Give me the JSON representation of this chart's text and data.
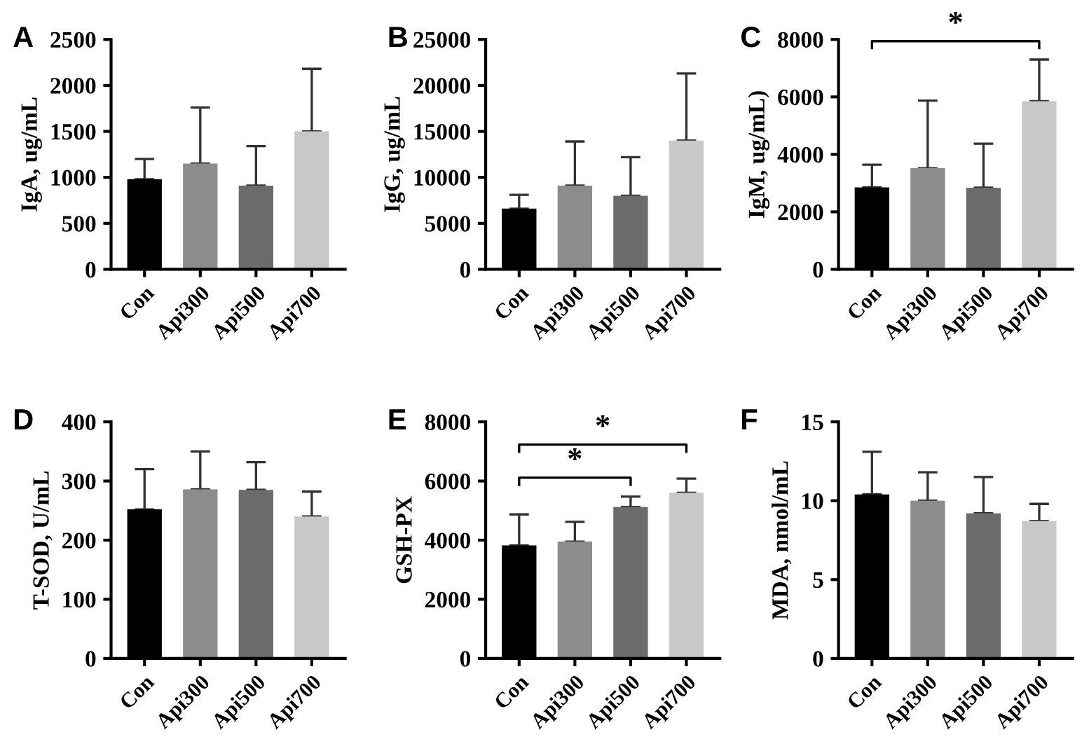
{
  "chart_data": [
    {
      "type": "bar",
      "title": "A",
      "ylabel": "IgA, ug/mL",
      "categories": [
        "Con",
        "Api300",
        "Api500",
        "Api700"
      ],
      "values": [
        980,
        1150,
        910,
        1500
      ],
      "colors": [
        "#000000",
        "#8c8c8c",
        "#6b6b6b",
        "#c8c8c8"
      ],
      "errors": [
        [
          980,
          1200
        ],
        [
          1150,
          1760
        ],
        [
          910,
          1340
        ],
        [
          1500,
          2180
        ]
      ],
      "ylim": [
        0,
        2500
      ],
      "yticks": [
        0,
        500,
        1000,
        1500,
        2000,
        2500
      ]
    },
    {
      "type": "bar",
      "title": "B",
      "ylabel": "IgG, ug/mL",
      "categories": [
        "Con",
        "Api300",
        "Api500",
        "Api700"
      ],
      "values": [
        6600,
        9100,
        8000,
        14000
      ],
      "colors": [
        "#000000",
        "#8c8c8c",
        "#6b6b6b",
        "#c8c8c8"
      ],
      "errors": [
        [
          6600,
          8100
        ],
        [
          9100,
          13900
        ],
        [
          8000,
          12200
        ],
        [
          14000,
          21300
        ]
      ],
      "ylim": [
        0,
        25000
      ],
      "yticks": [
        0,
        5000,
        10000,
        15000,
        20000,
        25000
      ]
    },
    {
      "type": "bar",
      "title": "C",
      "ylabel": "IgM, ug/mL)",
      "categories": [
        "Con",
        "Api300",
        "Api500",
        "Api700"
      ],
      "values": [
        2850,
        3520,
        2840,
        5850
      ],
      "colors": [
        "#000000",
        "#8c8c8c",
        "#6b6b6b",
        "#c8c8c8"
      ],
      "errors": [
        [
          2850,
          3640
        ],
        [
          3520,
          5870
        ],
        [
          2840,
          4370
        ],
        [
          5850,
          7300
        ]
      ],
      "ylim": [
        0,
        8000
      ],
      "yticks": [
        0,
        2000,
        4000,
        6000,
        8000
      ],
      "annotations": [
        "*"
      ]
    },
    {
      "type": "bar",
      "title": "D",
      "ylabel": "T-SOD, U/mL",
      "categories": [
        "Con",
        "Api300",
        "Api500",
        "Api700"
      ],
      "values": [
        252,
        286,
        285,
        240
      ],
      "colors": [
        "#000000",
        "#8c8c8c",
        "#6b6b6b",
        "#c8c8c8"
      ],
      "errors": [
        [
          252,
          320
        ],
        [
          286,
          350
        ],
        [
          285,
          332
        ],
        [
          240,
          282
        ]
      ],
      "ylim": [
        0,
        400
      ],
      "yticks": [
        0,
        100,
        200,
        300,
        400
      ]
    },
    {
      "type": "bar",
      "title": "E",
      "ylabel": "GSH-PX",
      "categories": [
        "Con",
        "Api300",
        "Api500",
        "Api700"
      ],
      "values": [
        3820,
        3950,
        5120,
        5600
      ],
      "colors": [
        "#000000",
        "#8c8c8c",
        "#6b6b6b",
        "#c8c8c8"
      ],
      "errors": [
        [
          3820,
          4870
        ],
        [
          3950,
          4620
        ],
        [
          5120,
          5470
        ],
        [
          5600,
          6080
        ]
      ],
      "ylim": [
        0,
        8000
      ],
      "yticks": [
        0,
        2000,
        4000,
        6000,
        8000
      ],
      "annotations": [
        "*",
        "*"
      ]
    },
    {
      "type": "bar",
      "title": "F",
      "ylabel": "MDA, nmol/mL",
      "categories": [
        "Con",
        "Api300",
        "Api500",
        "Api700"
      ],
      "values": [
        10.4,
        10.0,
        9.2,
        8.7
      ],
      "colors": [
        "#000000",
        "#8c8c8c",
        "#6b6b6b",
        "#c8c8c8"
      ],
      "errors": [
        [
          10.4,
          13.1
        ],
        [
          10.0,
          11.8
        ],
        [
          9.2,
          11.5
        ],
        [
          8.7,
          9.8
        ]
      ],
      "ylim": [
        0,
        15
      ],
      "yticks": [
        0,
        5,
        10,
        15
      ]
    }
  ]
}
